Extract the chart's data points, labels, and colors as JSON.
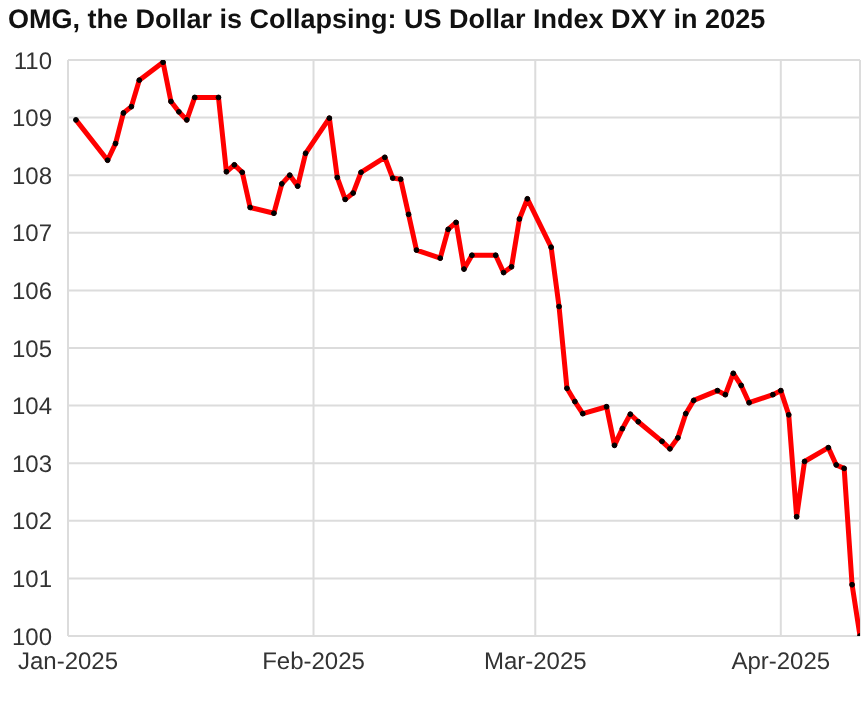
{
  "chart_data": {
    "type": "line",
    "title": "OMG, the Dollar is Collapsing: US Dollar Index DXY in 2025",
    "x": [
      "2025-01-02",
      "2025-01-06",
      "2025-01-07",
      "2025-01-08",
      "2025-01-09",
      "2025-01-10",
      "2025-01-13",
      "2025-01-14",
      "2025-01-15",
      "2025-01-16",
      "2025-01-17",
      "2025-01-20",
      "2025-01-21",
      "2025-01-22",
      "2025-01-23",
      "2025-01-24",
      "2025-01-27",
      "2025-01-28",
      "2025-01-29",
      "2025-01-30",
      "2025-01-31",
      "2025-02-03",
      "2025-02-04",
      "2025-02-05",
      "2025-02-06",
      "2025-02-07",
      "2025-02-10",
      "2025-02-11",
      "2025-02-12",
      "2025-02-13",
      "2025-02-14",
      "2025-02-17",
      "2025-02-18",
      "2025-02-19",
      "2025-02-20",
      "2025-02-21",
      "2025-02-24",
      "2025-02-25",
      "2025-02-26",
      "2025-02-27",
      "2025-02-28",
      "2025-03-03",
      "2025-03-04",
      "2025-03-05",
      "2025-03-06",
      "2025-03-07",
      "2025-03-10",
      "2025-03-11",
      "2025-03-12",
      "2025-03-13",
      "2025-03-14",
      "2025-03-17",
      "2025-03-18",
      "2025-03-19",
      "2025-03-20",
      "2025-03-21",
      "2025-03-24",
      "2025-03-25",
      "2025-03-26",
      "2025-03-27",
      "2025-03-28",
      "2025-03-31",
      "2025-04-01",
      "2025-04-02",
      "2025-04-03",
      "2025-04-04",
      "2025-04-07",
      "2025-04-08",
      "2025-04-09",
      "2025-04-10",
      "2025-04-11"
    ],
    "series": [
      {
        "color": "#ff0000",
        "values": [
          108.96,
          108.26,
          108.55,
          109.08,
          109.19,
          109.65,
          109.96,
          109.28,
          109.1,
          108.96,
          109.35,
          109.35,
          108.06,
          108.18,
          108.05,
          107.44,
          107.34,
          107.85,
          108.0,
          107.81,
          108.38,
          108.99,
          107.96,
          107.58,
          107.69,
          108.05,
          108.31,
          107.95,
          107.93,
          107.32,
          106.7,
          106.56,
          107.06,
          107.18,
          106.37,
          106.61,
          106.61,
          106.31,
          106.41,
          107.24,
          107.59,
          106.75,
          105.72,
          104.3,
          104.07,
          103.86,
          103.98,
          103.31,
          103.6,
          103.85,
          103.72,
          103.38,
          103.25,
          103.44,
          103.86,
          104.09,
          104.26,
          104.19,
          104.56,
          104.35,
          104.05,
          104.19,
          104.26,
          103.84,
          102.07,
          103.03,
          103.27,
          102.97,
          102.91,
          100.89,
          100.0
        ]
      }
    ],
    "xlim": [
      "2025-01-01",
      "2025-04-11"
    ],
    "xticks": [
      {
        "value": "2025-01-01",
        "label": "Jan-2025"
      },
      {
        "value": "2025-02-01",
        "label": "Feb-2025"
      },
      {
        "value": "2025-03-01",
        "label": "Mar-2025"
      },
      {
        "value": "2025-04-01",
        "label": "Apr-2025"
      }
    ],
    "ylim": [
      100,
      110
    ],
    "yticks": [
      100,
      101,
      102,
      103,
      104,
      105,
      106,
      107,
      108,
      109,
      110
    ],
    "grid": true,
    "marker": "circle",
    "line_style": "solid"
  }
}
